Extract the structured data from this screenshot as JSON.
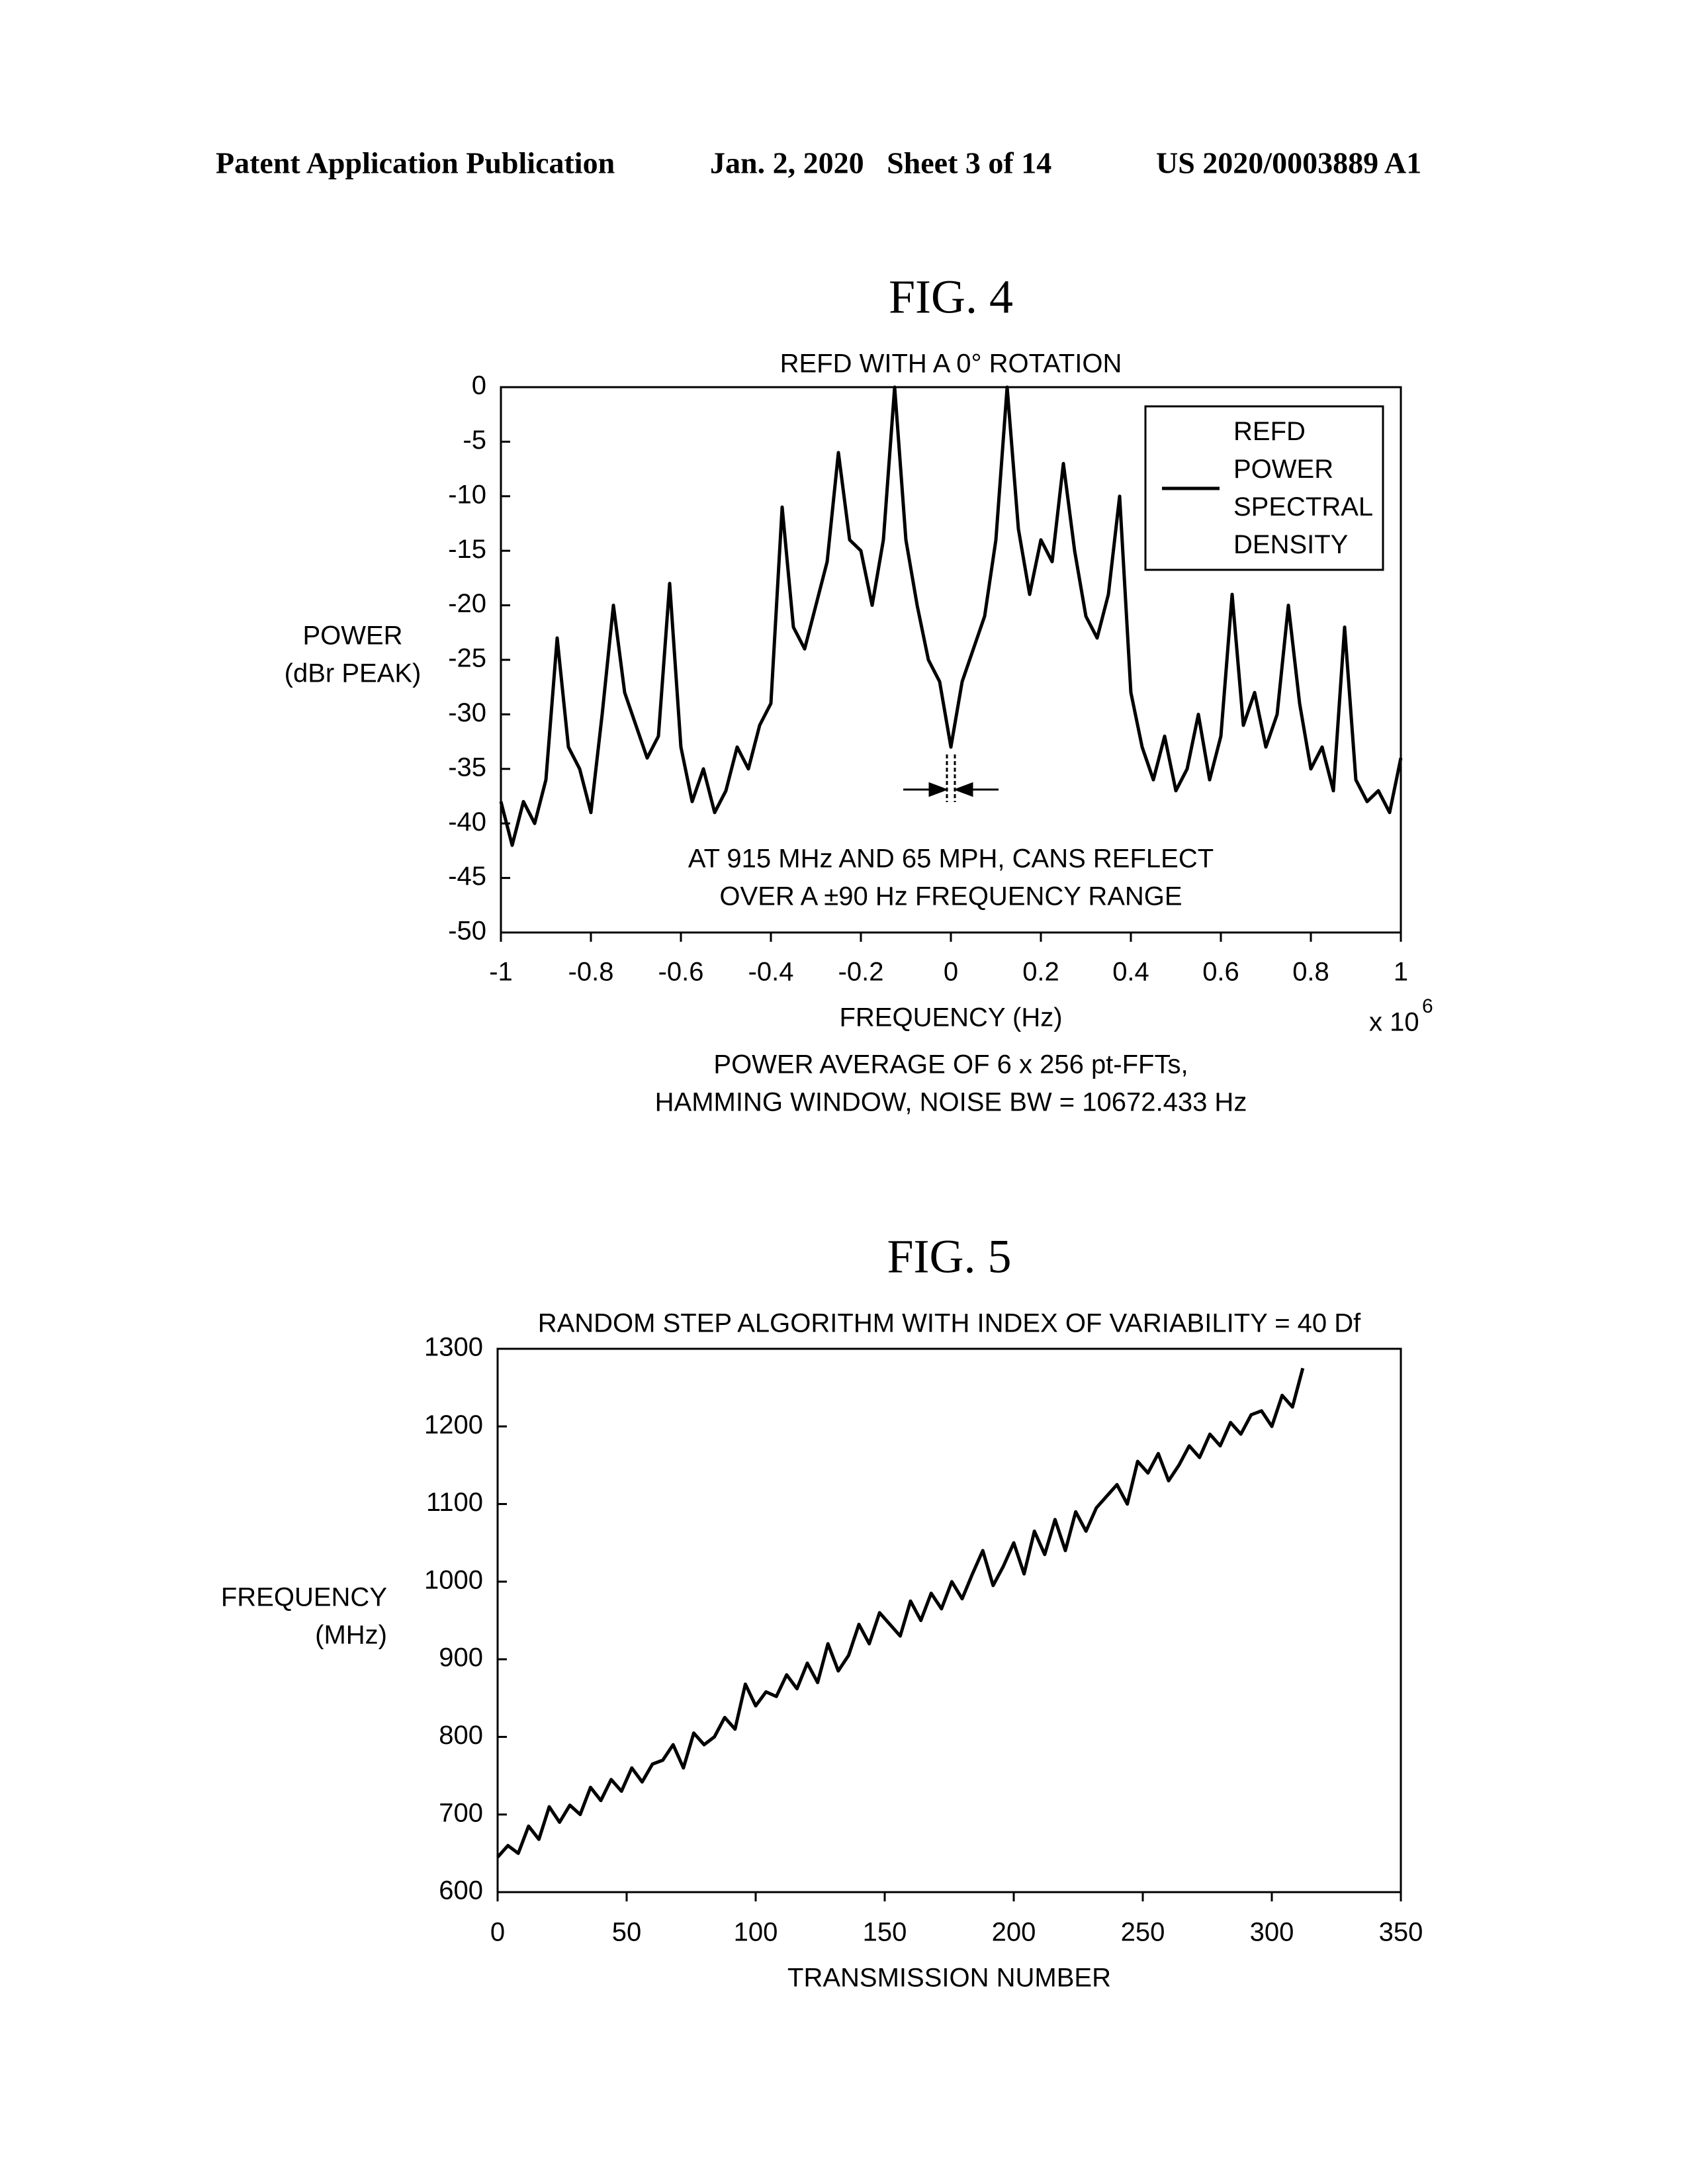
{
  "header": {
    "publication": "Patent Application Publication",
    "date_sheet": "Jan. 2, 2020   Sheet 3 of 14",
    "number": "US 2020/0003889 A1"
  },
  "chart_data": [
    {
      "type": "line",
      "figure_label": "FIG. 4",
      "title": "REFD WITH A 0° ROTATION",
      "y_label": [
        "POWER",
        "(dBr PEAK)"
      ],
      "x_label": "FREQUENCY (Hz)",
      "x_multiplier": "x 10",
      "x_multiplier_exponent": "6",
      "annotation": [
        "AT 915 MHz AND 65 MPH, CANS REFLECT",
        "OVER A ±90 Hz FREQUENCY RANGE"
      ],
      "note": [
        "POWER AVERAGE OF 6 x 256 pt-FFTs,",
        "HAMMING WINDOW, NOISE BW = 10672.433 Hz"
      ],
      "x": [
        -1,
        -0.975,
        -0.95,
        -0.925,
        -0.9,
        -0.875,
        -0.85,
        -0.825,
        -0.8,
        -0.775,
        -0.75,
        -0.725,
        -0.7,
        -0.675,
        -0.65,
        -0.625,
        -0.6,
        -0.575,
        -0.55,
        -0.525,
        -0.5,
        -0.475,
        -0.45,
        -0.425,
        -0.4,
        -0.375,
        -0.35,
        -0.325,
        -0.3,
        -0.275,
        -0.25,
        -0.225,
        -0.2,
        -0.175,
        -0.15,
        -0.125,
        -0.1,
        -0.075,
        -0.05,
        -0.025,
        0,
        0.025,
        0.05,
        0.075,
        0.1,
        0.125,
        0.15,
        0.175,
        0.2,
        0.225,
        0.25,
        0.275,
        0.3,
        0.325,
        0.35,
        0.375,
        0.4,
        0.425,
        0.45,
        0.475,
        0.5,
        0.525,
        0.55,
        0.575,
        0.6,
        0.625,
        0.65,
        0.675,
        0.7,
        0.725,
        0.75,
        0.775,
        0.8,
        0.825,
        0.85,
        0.875,
        0.9,
        0.925,
        0.95,
        0.975,
        1
      ],
      "series": [
        {
          "name": "REFD POWER SPECTRAL DENSITY",
          "color": "#000000",
          "values": [
            -38,
            -42,
            -38,
            -40,
            -36,
            -23,
            -33,
            -35,
            -39,
            -30,
            -20,
            -28,
            -31,
            -34,
            -32,
            -18,
            -33,
            -38,
            -35,
            -39,
            -37,
            -33,
            -35,
            -31,
            -29,
            -11,
            -22,
            -24,
            -20,
            -16,
            -6,
            -14,
            -15,
            -20,
            -14,
            0,
            -14,
            -20,
            -25,
            -27,
            -33,
            -27,
            -24,
            -21,
            -14,
            0,
            -13,
            -19,
            -14,
            -16,
            -7,
            -15,
            -21,
            -23,
            -19,
            -10,
            -28,
            -33,
            -36,
            -32,
            -37,
            -35,
            -30,
            -36,
            -32,
            -19,
            -31,
            -28,
            -33,
            -30,
            -20,
            -29,
            -35,
            -33,
            -37,
            -22,
            -36,
            -38,
            -37,
            -39,
            -34
          ]
        }
      ],
      "xlim": [
        -1,
        1
      ],
      "xticks": [
        -1,
        -0.8,
        -0.6,
        -0.4,
        -0.2,
        0,
        0.2,
        0.4,
        0.6,
        0.8,
        1
      ],
      "ylim": [
        -50,
        0
      ],
      "yticks": [
        0,
        -5,
        -10,
        -15,
        -20,
        -25,
        -30,
        -35,
        -40,
        -45,
        -50
      ],
      "legend": "upper right"
    },
    {
      "type": "line",
      "figure_label": "FIG. 5",
      "title": "RANDOM STEP ALGORITHM WITH INDEX OF VARIABILITY = 40 Df",
      "y_label": [
        "FREQUENCY",
        "(MHz)"
      ],
      "x_label": "TRANSMISSION NUMBER",
      "x": [
        0,
        4,
        8,
        12,
        16,
        20,
        24,
        28,
        32,
        36,
        40,
        44,
        48,
        52,
        56,
        60,
        64,
        68,
        72,
        76,
        80,
        84,
        88,
        92,
        96,
        100,
        104,
        108,
        112,
        116,
        120,
        124,
        128,
        132,
        136,
        140,
        144,
        148,
        152,
        156,
        160,
        164,
        168,
        172,
        176,
        180,
        184,
        188,
        192,
        196,
        200,
        204,
        208,
        212,
        216,
        220,
        224,
        228,
        232,
        236,
        240,
        244,
        248,
        252,
        256,
        260,
        264,
        268,
        272,
        276,
        280,
        284,
        288,
        292,
        296,
        300,
        304,
        308,
        312
      ],
      "series": [
        {
          "color": "#000000",
          "values": [
            645,
            660,
            650,
            685,
            668,
            710,
            690,
            712,
            700,
            735,
            718,
            745,
            730,
            760,
            742,
            765,
            770,
            790,
            760,
            805,
            790,
            800,
            825,
            810,
            868,
            840,
            858,
            852,
            880,
            862,
            895,
            870,
            920,
            885,
            905,
            945,
            920,
            960,
            945,
            930,
            975,
            950,
            985,
            965,
            1000,
            978,
            1010,
            1040,
            995,
            1020,
            1050,
            1010,
            1065,
            1035,
            1080,
            1040,
            1090,
            1065,
            1095,
            1110,
            1125,
            1100,
            1155,
            1140,
            1165,
            1130,
            1150,
            1175,
            1160,
            1190,
            1175,
            1205,
            1190,
            1215,
            1220,
            1200,
            1240,
            1225,
            1275
          ]
        }
      ],
      "xlim": [
        0,
        350
      ],
      "xticks": [
        0,
        50,
        100,
        150,
        200,
        250,
        300,
        350
      ],
      "ylim": [
        600,
        1300
      ],
      "yticks": [
        600,
        700,
        800,
        900,
        1000,
        1100,
        1200,
        1300
      ]
    }
  ]
}
